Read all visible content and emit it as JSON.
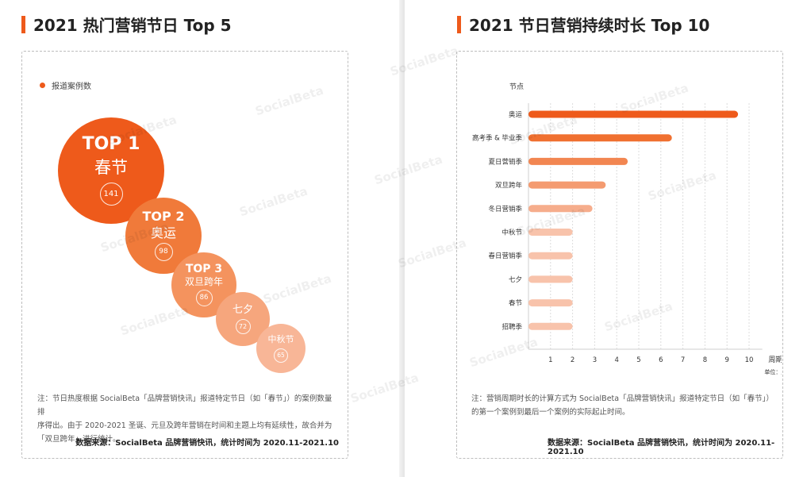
{
  "watermark": "SocialBeta",
  "colors": {
    "accent": "#ee5a1b"
  },
  "left": {
    "title": "2021 热门营销节日 Top 5",
    "legend": "报道案例数",
    "note_lines": [
      "注：节日热度根据 SocialBeta「品牌营销快讯」报道特定节日（如「春节」）的案例数量排",
      "序得出。由于 2020-2021 圣诞、元旦及跨年营销在时间和主题上均有延续性，故合并为",
      "「双旦跨年」进行统计。"
    ],
    "source": "数据来源：SocialBeta 品牌营销快讯，统计时间为 2020.11-2021.10"
  },
  "right": {
    "title": "2021 节日营销持续时长 Top 10",
    "note_lines": [
      "注：营销周期时长的计算方式为 SocialBeta「品牌营销快讯」报道特定节日（如「春节」）",
      "的第一个案例到最后一个案例的实际起止时间。"
    ],
    "source": "数据来源：SocialBeta 品牌营销快讯，统计时间为 2020.11-2021.10"
  },
  "chart_data": [
    {
      "type": "bubble",
      "title": "2021 热门营销节日 Top 5",
      "series_name": "报道案例数",
      "items": [
        {
          "rank": "TOP 1",
          "name": "春节",
          "value": 141,
          "color": "#ee5a1b"
        },
        {
          "rank": "TOP 2",
          "name": "奥运",
          "value": 98,
          "color": "#f07a3a"
        },
        {
          "rank": "TOP 3",
          "name": "双旦跨年",
          "value": 86,
          "color": "#f4935e"
        },
        {
          "rank": "",
          "name": "七夕",
          "value": 72,
          "color": "#f6a67d"
        },
        {
          "rank": "",
          "name": "中秋节",
          "value": 65,
          "color": "#f8b697"
        }
      ]
    },
    {
      "type": "bar",
      "orientation": "horizontal",
      "title": "2021 节日营销持续时长 Top 10",
      "ylabel": "节点",
      "xlabel": "周期",
      "unit": "单位：月",
      "xlim": [
        0,
        10
      ],
      "xticks": [
        1,
        2,
        3,
        4,
        5,
        6,
        7,
        8,
        9,
        10
      ],
      "grid": true,
      "categories": [
        "奥运",
        "高考季 & 毕业季",
        "夏日营销季",
        "双旦跨年",
        "冬日营销季",
        "中秋节",
        "春日营销季",
        "七夕",
        "春节",
        "招聘季"
      ],
      "values": [
        9.5,
        6.5,
        4.5,
        3.5,
        2.9,
        2,
        2,
        2,
        2,
        2
      ],
      "colors": [
        "#ee5a1b",
        "#f07030",
        "#f28651",
        "#f49b70",
        "#f6ad8c",
        "#f8c3ab",
        "#f8c3ab",
        "#f8c3ab",
        "#f8c3ab",
        "#f8c3ab"
      ]
    }
  ]
}
